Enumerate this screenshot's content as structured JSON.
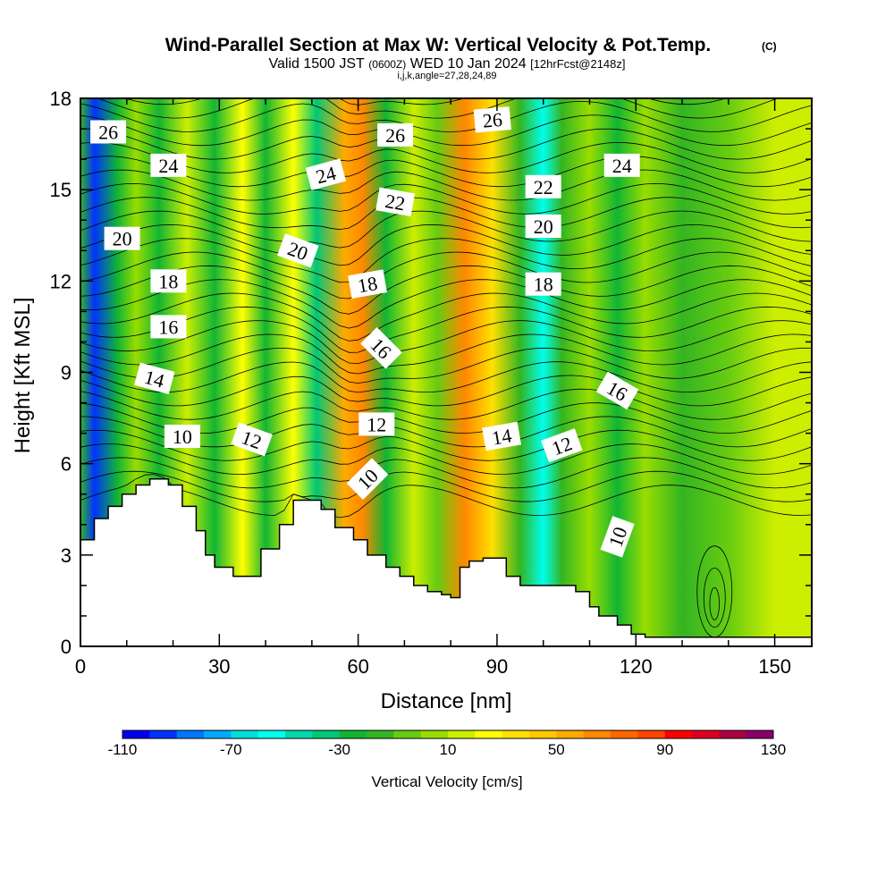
{
  "chart_data": {
    "type": "heatmap",
    "title": "Wind-Parallel Section at Max W: Vertical Velocity & Pot.Temp.",
    "title_mark": "(C)",
    "subtitle_prefix": "Valid 1500 JST",
    "subtitle_utc": "(0600Z)",
    "subtitle_date": "WED 10 Jan 2024",
    "subtitle_fcst": "[12hrFcst@2148z]",
    "subtitle2": "i,j,k,angle=27,28,24,89",
    "xlabel": "Distance [nm]",
    "ylabel": "Height [Kft MSL]",
    "xlim": [
      0,
      158
    ],
    "ylim": [
      0,
      18
    ],
    "x_ticks": [
      0,
      30,
      60,
      90,
      120,
      150
    ],
    "y_ticks": [
      0,
      3,
      6,
      9,
      12,
      15,
      18
    ],
    "colorbar": {
      "label": "Vertical Velocity [cm/s]",
      "ticks": [
        -110,
        -70,
        -30,
        10,
        50,
        90,
        130
      ],
      "min": -110,
      "max": 130,
      "step": 10,
      "colors": [
        "#0000ee",
        "#0033ff",
        "#0077ff",
        "#00aaff",
        "#00dddd",
        "#00ffee",
        "#00d8aa",
        "#00c777",
        "#11b533",
        "#33b522",
        "#66cc11",
        "#99dd00",
        "#ccee00",
        "#ffff00",
        "#ffe000",
        "#ffc800",
        "#ffaa00",
        "#ff8800",
        "#ff6600",
        "#ff4400",
        "#ff0000",
        "#dd0022",
        "#aa0044",
        "#880066",
        "#660088"
      ]
    },
    "velocity_bands": [
      {
        "x": 0,
        "w": -20
      },
      {
        "x": 3,
        "w": -100
      },
      {
        "x": 8,
        "w": -30
      },
      {
        "x": 12,
        "w": 5
      },
      {
        "x": 17,
        "w": -25
      },
      {
        "x": 23,
        "w": 15
      },
      {
        "x": 29,
        "w": -25
      },
      {
        "x": 35,
        "w": 25
      },
      {
        "x": 40,
        "w": -25
      },
      {
        "x": 46,
        "w": 25
      },
      {
        "x": 51,
        "w": -35
      },
      {
        "x": 57,
        "w": 50
      },
      {
        "x": 61,
        "w": 60
      },
      {
        "x": 66,
        "w": -30
      },
      {
        "x": 72,
        "w": 10
      },
      {
        "x": 77,
        "w": -10
      },
      {
        "x": 83,
        "w": 60
      },
      {
        "x": 89,
        "w": 30
      },
      {
        "x": 95,
        "w": -20
      },
      {
        "x": 100,
        "w": -60
      },
      {
        "x": 104,
        "w": -20
      },
      {
        "x": 110,
        "w": 0
      },
      {
        "x": 116,
        "w": -25
      },
      {
        "x": 122,
        "w": 0
      },
      {
        "x": 130,
        "w": -20
      },
      {
        "x": 140,
        "w": -10
      },
      {
        "x": 150,
        "w": 10
      },
      {
        "x": 158,
        "w": 15
      }
    ],
    "terrain": [
      {
        "x": 0,
        "h": 3.5
      },
      {
        "x": 3,
        "h": 4.2
      },
      {
        "x": 6,
        "h": 4.6
      },
      {
        "x": 9,
        "h": 5.0
      },
      {
        "x": 12,
        "h": 5.3
      },
      {
        "x": 15,
        "h": 5.5
      },
      {
        "x": 19,
        "h": 5.3
      },
      {
        "x": 22,
        "h": 4.6
      },
      {
        "x": 25,
        "h": 3.8
      },
      {
        "x": 27,
        "h": 3.0
      },
      {
        "x": 29,
        "h": 2.6
      },
      {
        "x": 33,
        "h": 2.3
      },
      {
        "x": 39,
        "h": 3.2
      },
      {
        "x": 43,
        "h": 4.0
      },
      {
        "x": 46,
        "h": 4.8
      },
      {
        "x": 52,
        "h": 4.5
      },
      {
        "x": 55,
        "h": 3.9
      },
      {
        "x": 59,
        "h": 3.5
      },
      {
        "x": 62,
        "h": 3.0
      },
      {
        "x": 66,
        "h": 2.6
      },
      {
        "x": 69,
        "h": 2.3
      },
      {
        "x": 72,
        "h": 2.0
      },
      {
        "x": 75,
        "h": 1.8
      },
      {
        "x": 78,
        "h": 1.7
      },
      {
        "x": 80,
        "h": 1.6
      },
      {
        "x": 82,
        "h": 2.6
      },
      {
        "x": 84,
        "h": 2.8
      },
      {
        "x": 87,
        "h": 2.9
      },
      {
        "x": 92,
        "h": 2.3
      },
      {
        "x": 95,
        "h": 2.0
      },
      {
        "x": 98,
        "h": 2.0
      },
      {
        "x": 107,
        "h": 1.8
      },
      {
        "x": 110,
        "h": 1.3
      },
      {
        "x": 112,
        "h": 1.0
      },
      {
        "x": 116,
        "h": 0.7
      },
      {
        "x": 119,
        "h": 0.4
      },
      {
        "x": 122,
        "h": 0.3
      },
      {
        "x": 158,
        "h": 0.3
      }
    ],
    "theta_labels": [
      {
        "text": "26",
        "x": 6,
        "y": 16.9,
        "rot": 0
      },
      {
        "text": "24",
        "x": 19,
        "y": 15.8,
        "rot": 0
      },
      {
        "text": "20",
        "x": 9,
        "y": 13.4,
        "rot": 0
      },
      {
        "text": "18",
        "x": 19,
        "y": 12.0,
        "rot": 0
      },
      {
        "text": "16",
        "x": 19,
        "y": 10.5,
        "rot": 0
      },
      {
        "text": "14",
        "x": 16,
        "y": 8.8,
        "rot": 15
      },
      {
        "text": "10",
        "x": 22,
        "y": 6.9,
        "rot": 0
      },
      {
        "text": "12",
        "x": 37,
        "y": 6.8,
        "rot": 20
      },
      {
        "text": "24",
        "x": 53,
        "y": 15.5,
        "rot": -15
      },
      {
        "text": "20",
        "x": 47,
        "y": 13.0,
        "rot": 20
      },
      {
        "text": "18",
        "x": 62,
        "y": 11.9,
        "rot": -10
      },
      {
        "text": "16",
        "x": 65,
        "y": 9.8,
        "rot": 45
      },
      {
        "text": "12",
        "x": 64,
        "y": 7.3,
        "rot": 0
      },
      {
        "text": "10",
        "x": 62,
        "y": 5.5,
        "rot": -45
      },
      {
        "text": "26",
        "x": 68,
        "y": 16.8,
        "rot": 0
      },
      {
        "text": "22",
        "x": 68,
        "y": 14.6,
        "rot": 10
      },
      {
        "text": "26",
        "x": 89,
        "y": 17.3,
        "rot": -5
      },
      {
        "text": "22",
        "x": 100,
        "y": 15.1,
        "rot": 0
      },
      {
        "text": "20",
        "x": 100,
        "y": 13.8,
        "rot": 0
      },
      {
        "text": "18",
        "x": 100,
        "y": 11.9,
        "rot": 0
      },
      {
        "text": "14",
        "x": 91,
        "y": 6.9,
        "rot": -10
      },
      {
        "text": "12",
        "x": 104,
        "y": 6.6,
        "rot": -20
      },
      {
        "text": "24",
        "x": 117,
        "y": 15.8,
        "rot": 0
      },
      {
        "text": "16",
        "x": 116,
        "y": 8.4,
        "rot": 30
      },
      {
        "text": "10",
        "x": 116,
        "y": 3.6,
        "rot": -70
      }
    ]
  }
}
